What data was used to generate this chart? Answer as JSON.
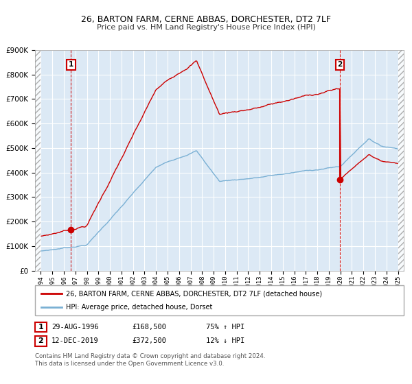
{
  "title": "26, BARTON FARM, CERNE ABBAS, DORCHESTER, DT2 7LF",
  "subtitle": "Price paid vs. HM Land Registry's House Price Index (HPI)",
  "legend1": "26, BARTON FARM, CERNE ABBAS, DORCHESTER, DT2 7LF (detached house)",
  "legend2": "HPI: Average price, detached house, Dorset",
  "marker1_date": "29-AUG-1996",
  "marker1_price": "£168,500",
  "marker1_pct": "75% ↑ HPI",
  "marker2_date": "12-DEC-2019",
  "marker2_price": "£372,500",
  "marker2_pct": "12% ↓ HPI",
  "footnote": "Contains HM Land Registry data © Crown copyright and database right 2024.\nThis data is licensed under the Open Government Licence v3.0.",
  "red_color": "#cc0000",
  "blue_color": "#7ab0d4",
  "bg_color": "#dce9f5",
  "grid_color": "#ffffff",
  "ylim": [
    0,
    900000
  ]
}
